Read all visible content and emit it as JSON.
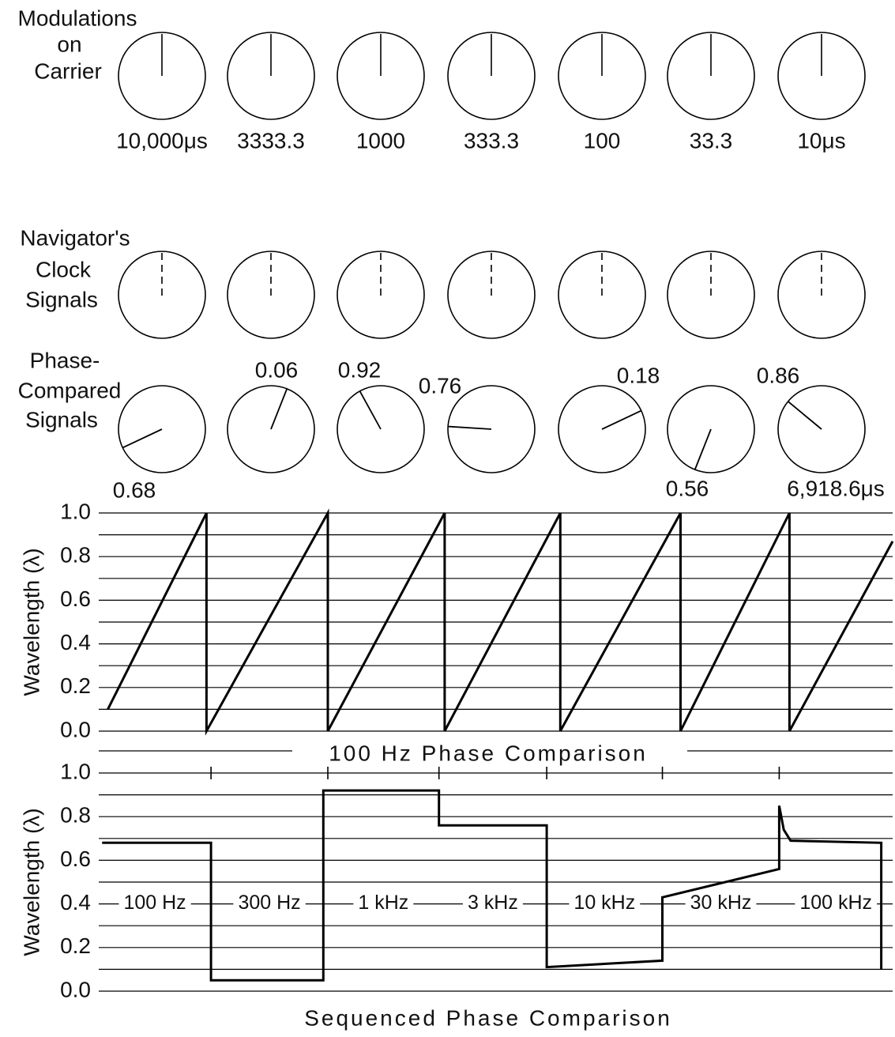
{
  "modulations": {
    "label": [
      "Modulations",
      "on",
      "Carrier"
    ],
    "labels": [
      "10,000μs",
      "3333.3",
      "1000",
      "333.3",
      "100",
      "33.3",
      "10μs"
    ]
  },
  "clock": {
    "label": [
      "Navigator's",
      "Clock",
      "Signals"
    ]
  },
  "phase": {
    "label": [
      "Phase-",
      "Compared",
      "Signals"
    ],
    "values": [
      0.68,
      0.06,
      0.92,
      0.76,
      0.18,
      0.56,
      0.86
    ],
    "total": "6,918.6μs"
  },
  "chart_data": [
    {
      "type": "line",
      "title": "100 Hz Phase Comparison",
      "ylabel": "Wavelength (λ)",
      "xlim": [
        0,
        7
      ],
      "ylim": [
        0,
        1
      ],
      "yticks": [
        {
          "value": 0,
          "label": "0.0"
        },
        {
          "value": 0.2,
          "label": "0.2"
        },
        {
          "value": 0.4,
          "label": "0.4"
        },
        {
          "value": 0.6,
          "label": "0.6"
        },
        {
          "value": 0.8,
          "label": "0.8"
        },
        {
          "value": 1,
          "label": "1.0"
        }
      ],
      "minor_yticks": [
        0.1,
        0.3,
        0.5,
        0.7,
        0.9
      ],
      "grid": true,
      "series": [
        {
          "color": "#000",
          "x": [
            0.08,
            0.95,
            0.95,
            2.02,
            2.02,
            3.05,
            3.05,
            4.07,
            4.07,
            5.13,
            5.13,
            6.09,
            6.09,
            7.0
          ],
          "values": [
            0.1,
            1,
            0,
            1,
            0,
            1,
            0,
            1,
            0,
            1,
            0,
            1,
            0,
            0.87
          ]
        }
      ]
    },
    {
      "type": "line",
      "title": "Sequenced Phase Comparison",
      "ylabel": "Wavelength (λ)",
      "xlim": [
        0,
        7
      ],
      "ylim": [
        0,
        1
      ],
      "yticks": [
        {
          "value": 0,
          "label": "0.0"
        },
        {
          "value": 0.2,
          "label": "0.2"
        },
        {
          "value": 0.4,
          "label": "0.4"
        },
        {
          "value": 0.6,
          "label": "0.6"
        },
        {
          "value": 0.8,
          "label": "0.8"
        },
        {
          "value": 1,
          "label": "1.0"
        }
      ],
      "minor_yticks": [
        0.1,
        0.3,
        0.5,
        0.7,
        0.9
      ],
      "grid": true,
      "xticks": [
        0.99,
        2.02,
        3.0,
        3.95,
        4.97,
        6.0
      ],
      "segments": [
        "100 Hz",
        "300 Hz",
        "1 kHz",
        "3 kHz",
        "10 kHz",
        "30 kHz",
        "100 kHz"
      ],
      "series": [
        {
          "color": "#000",
          "x": [
            0.03,
            0.99,
            0.99,
            1.98,
            1.98,
            3.0,
            3.0,
            3.95,
            3.95,
            4.97,
            4.97,
            6.0,
            6.0,
            6.04,
            6.1,
            6.9,
            6.9
          ],
          "values": [
            0.68,
            0.68,
            0.05,
            0.05,
            0.92,
            0.92,
            0.76,
            0.76,
            0.11,
            0.14,
            0.43,
            0.56,
            0.85,
            0.74,
            0.69,
            0.68,
            0.1
          ]
        }
      ]
    }
  ]
}
